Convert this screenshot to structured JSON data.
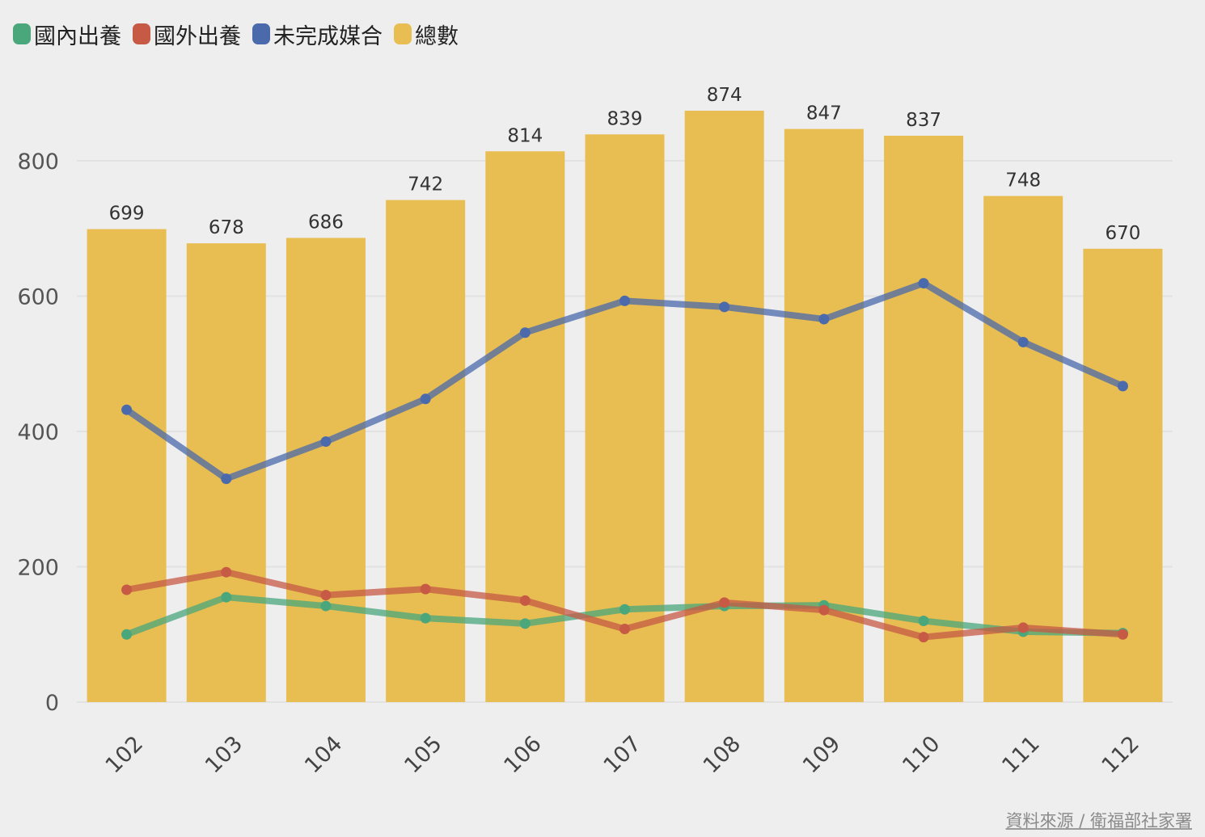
{
  "legend": {
    "items": [
      {
        "label": "國內出養",
        "color": "#4aa77c"
      },
      {
        "label": "國外出養",
        "color": "#c65a45"
      },
      {
        "label": "未完成媒合",
        "color": "#4a6aab"
      },
      {
        "label": "總數",
        "color": "#e8bd52"
      }
    ]
  },
  "source_note": "資料來源 / 衛福部社家署",
  "chart_data": {
    "type": "bar",
    "title": "",
    "xlabel": "",
    "ylabel": "",
    "categories": [
      "102",
      "103",
      "104",
      "105",
      "106",
      "107",
      "108",
      "109",
      "110",
      "111",
      "112"
    ],
    "ylim": [
      0,
      900
    ],
    "yticks": [
      0,
      200,
      400,
      600,
      800
    ],
    "grid": true,
    "legend_position": "top-left",
    "bars": {
      "name": "總數",
      "color": "#e8bd52",
      "values": [
        699,
        678,
        686,
        742,
        814,
        839,
        874,
        847,
        837,
        748,
        670
      ],
      "data_labels": [
        "699",
        "678",
        "686",
        "742",
        "814",
        "839",
        "874",
        "847",
        "837",
        "748",
        "670"
      ]
    },
    "series": [
      {
        "name": "國內出養",
        "type": "line",
        "color": "#4aa77c",
        "values": [
          100,
          155,
          142,
          124,
          116,
          137,
          142,
          143,
          120,
          104,
          102
        ]
      },
      {
        "name": "國外出養",
        "type": "line",
        "color": "#c65a45",
        "values": [
          166,
          192,
          158,
          167,
          150,
          108,
          147,
          136,
          96,
          110,
          100
        ]
      },
      {
        "name": "未完成媒合",
        "type": "line",
        "color": "#4a6aab",
        "values": [
          432,
          330,
          385,
          448,
          546,
          593,
          584,
          566,
          619,
          532,
          467
        ]
      }
    ]
  }
}
